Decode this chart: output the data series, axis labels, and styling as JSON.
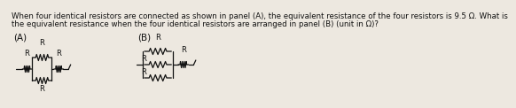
{
  "title_line1": "When four identical resistors are connected as shown in panel (A), the equivalent resistance of the four resistors is 9.5 Ω. What is",
  "title_line2": "the equivalent resistance when the four identical resistors are arranged in panel (B) (unit in Ω)?",
  "bg_color": "#ede8e0",
  "text_color": "#111111",
  "label_A": "(A)",
  "label_B": "(B)",
  "font_size_text": 6.2,
  "font_size_label": 7.5,
  "font_size_R": 6.0
}
